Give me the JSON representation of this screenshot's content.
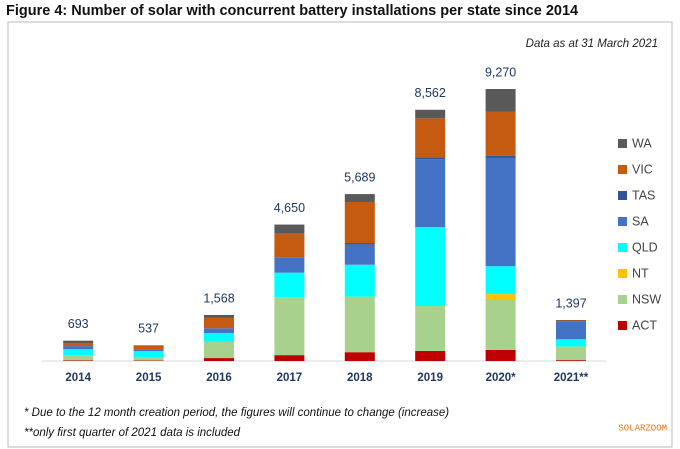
{
  "chart_data": {
    "type": "stacked_bar",
    "title": "Figure 4: Number of solar with concurrent battery installations per state since 2014",
    "subtitle": "Data as at 31 March 2021",
    "categories": [
      "2014",
      "2015",
      "2016",
      "2017",
      "2018",
      "2019",
      "2020*",
      "2021**"
    ],
    "series": [
      {
        "name": "ACT",
        "color": "#c00000",
        "values": [
          20,
          15,
          100,
          200,
          300,
          340,
          380,
          30
        ]
      },
      {
        "name": "NSW",
        "color": "#a9d18e",
        "values": [
          180,
          120,
          550,
          1950,
          1880,
          1500,
          1700,
          450
        ]
      },
      {
        "name": "NT",
        "color": "#ffc000",
        "values": [
          0,
          0,
          0,
          10,
          10,
          20,
          200,
          10
        ]
      },
      {
        "name": "QLD",
        "color": "#00ffff",
        "values": [
          200,
          200,
          300,
          850,
          1090,
          2700,
          950,
          250
        ]
      },
      {
        "name": "SA",
        "color": "#4472c4",
        "values": [
          100,
          40,
          150,
          510,
          680,
          2320,
          3690,
          600
        ]
      },
      {
        "name": "TAS",
        "color": "#2f5597",
        "values": [
          10,
          10,
          20,
          20,
          60,
          60,
          70,
          20
        ]
      },
      {
        "name": "VIC",
        "color": "#c55a11",
        "values": [
          90,
          150,
          348,
          800,
          1400,
          1330,
          1500,
          20
        ]
      },
      {
        "name": "WA",
        "color": "#595959",
        "values": [
          93,
          2,
          100,
          310,
          269,
          292,
          780,
          17
        ]
      }
    ],
    "totals": [
      693,
      537,
      1568,
      4650,
      5689,
      8562,
      9270,
      1397
    ],
    "total_labels": [
      "693",
      "537",
      "1,568",
      "4,650",
      "5,689",
      "8,562",
      "9,270",
      "1,397"
    ],
    "notes": [
      "* Due to the 12 month creation period, the figures will continue to change (increase)",
      "**only first quarter of 2021 data is included"
    ],
    "watermark": "SOLARZOOM"
  }
}
